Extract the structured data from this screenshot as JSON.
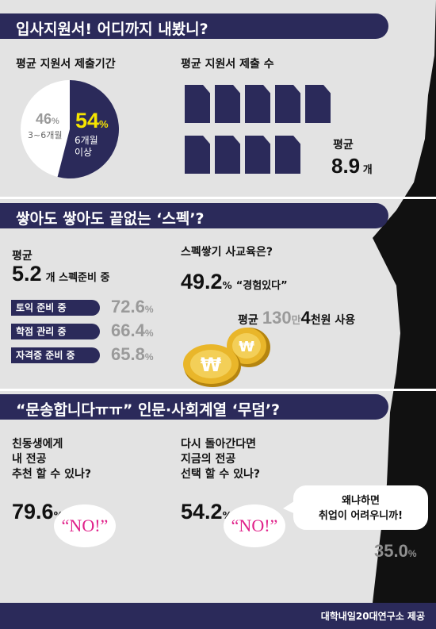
{
  "colors": {
    "navy": "#2b2a5a",
    "accent_yellow": "#f5e400",
    "no_pink": "#e0218a",
    "coin_gold": "#e9b62a",
    "muted_grey": "#9a9a9a"
  },
  "section1": {
    "title": "입사지원서! 어디까지 내봤니?",
    "period_label": "평균 지원서 제출기간",
    "pie": {
      "slices": [
        {
          "value": 54,
          "unit": "%",
          "caption1": "6개월",
          "caption2": "이상"
        },
        {
          "value": 46,
          "unit": "%",
          "caption1": "3~6개월",
          "caption2": ""
        }
      ]
    },
    "count_label": "평균 지원서 제출 수",
    "avg_label": "평균",
    "avg_value": "8.9",
    "avg_unit": "개"
  },
  "section2": {
    "title": "쌓아도 쌓아도 끝없는 ‘스펙’?",
    "avg_label": "평균",
    "avg_value": "5.2",
    "avg_suffix": "개 스펙준비 중",
    "bars": [
      {
        "label": "토익 준비 중",
        "value": "72.6",
        "unit": "%"
      },
      {
        "label": "학점 관리 중",
        "value": "66.4",
        "unit": "%"
      },
      {
        "label": "자격증 준비 중",
        "value": "65.8",
        "unit": "%"
      }
    ],
    "private_label": "스펙쌓기 사교육은?",
    "private_value": "49.2",
    "private_unit": "%",
    "private_quote": "“경험있다”",
    "spend_prefix": "평균",
    "spend_num1": "130",
    "spend_man": "만",
    "spend_num2": "4",
    "spend_suffix": "천원 사용",
    "coin_symbol": "₩"
  },
  "section3": {
    "title": "“문송합니다ㅠㅠ” 인문·사회계열 ‘무덤’?",
    "q1": [
      "친동생에게",
      "내 전공",
      "추천 할 수 있나?"
    ],
    "q1_value": "79.6",
    "q1_unit": "%",
    "q2": [
      "다시 돌아간다면",
      "지금의 전공",
      "선택 할 수 있나?"
    ],
    "q2_value": "54.2",
    "q2_unit": "%",
    "no_text": "“NO!”",
    "bubble": [
      "왜냐하면",
      "취업이 어려우니까!"
    ],
    "bubble_value": "35.0",
    "bubble_unit": "%"
  },
  "footer": {
    "credit": "대학내일20대연구소 제공"
  }
}
